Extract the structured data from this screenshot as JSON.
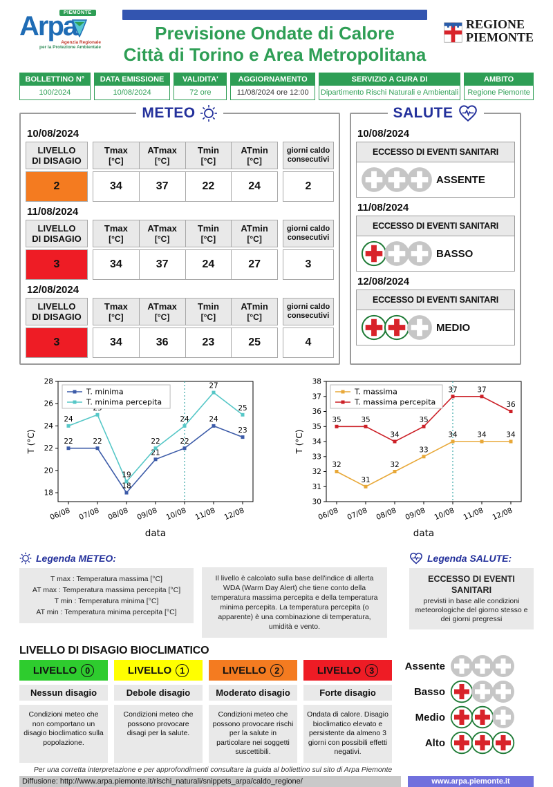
{
  "header": {
    "logo": {
      "badge": "PIEMONTE",
      "word": "Arpa",
      "sub1": "Agenzia Regionale",
      "sub2": "per la Protezione Ambientale"
    },
    "title_line1": "Previsione Ondate di Calore",
    "title_line2": "Città di Torino e Area Metropolitana",
    "region": {
      "line1": "REGIONE",
      "line2": "PIEMONTE"
    },
    "accent_green": "#2e9e55",
    "accent_blue": "#3355b0"
  },
  "info_bar": [
    {
      "label": "BOLLETTINO N°",
      "value": "100/2024"
    },
    {
      "label": "DATA EMISSIONE",
      "value": "10/08/2024"
    },
    {
      "label": "VALIDITA'",
      "value": "72 ore"
    },
    {
      "label": "AGGIORNAMENTO",
      "value": "11/08/2024 ore 12:00"
    },
    {
      "label": "SERVIZIO A CURA DI",
      "value": "Dipartimento Rischi Naturali e Ambientali"
    },
    {
      "label": "AMBITO",
      "value": "Regione Piemonte"
    }
  ],
  "meteo": {
    "section_title": "METEO",
    "headers": {
      "livello": "LIVELLO\nDI DISAGIO",
      "cols": [
        {
          "name": "Tmax",
          "unit": "[°C]"
        },
        {
          "name": "ATmax",
          "unit": "[°C]"
        },
        {
          "name": "Tmin",
          "unit": "[°C]"
        },
        {
          "name": "ATmin",
          "unit": "[°C]"
        }
      ],
      "giorni": "giorni caldo\nconsecutivi"
    },
    "days": [
      {
        "date": "10/08/2024",
        "level": "2",
        "level_color": "#f47b20",
        "values": [
          "34",
          "37",
          "22",
          "24"
        ],
        "giorni": "2"
      },
      {
        "date": "11/08/2024",
        "level": "3",
        "level_color": "#ee1c25",
        "values": [
          "34",
          "37",
          "24",
          "27"
        ],
        "giorni": "3"
      },
      {
        "date": "12/08/2024",
        "level": "3",
        "level_color": "#ee1c25",
        "values": [
          "34",
          "36",
          "23",
          "25"
        ],
        "giorni": "4"
      }
    ]
  },
  "salute": {
    "section_title": "SALUTE",
    "days": [
      {
        "date": "10/08/2024",
        "header": "ECCESSO DI EVENTI SANITARI",
        "label": "ASSENTE",
        "red_crosses": 0
      },
      {
        "date": "11/08/2024",
        "header": "ECCESSO DI EVENTI SANITARI",
        "label": "BASSO",
        "red_crosses": 1
      },
      {
        "date": "12/08/2024",
        "header": "ECCESSO DI EVENTI SANITARI",
        "label": "MEDIO",
        "red_crosses": 2
      }
    ]
  },
  "chart_data": [
    {
      "type": "line",
      "x": [
        "06/08",
        "07/08",
        "08/08",
        "09/08",
        "10/08",
        "11/08",
        "12/08"
      ],
      "series": [
        {
          "name": "T. minima",
          "color": "#3c5ba8",
          "values": [
            22,
            22,
            18,
            21,
            22,
            24,
            23
          ]
        },
        {
          "name": "T. minima percepita",
          "color": "#56c7c7",
          "values": [
            24,
            25,
            19,
            22,
            24,
            27,
            25
          ]
        }
      ],
      "title": "",
      "xlabel": "data",
      "ylabel": "T (°C)",
      "ylim": [
        17.2,
        28
      ],
      "yticks": [
        18,
        20,
        22,
        24,
        26,
        28
      ],
      "vline_x": "10/08",
      "vline_color": "#3aa8a8",
      "grid": false,
      "legend_position": "upper-left"
    },
    {
      "type": "line",
      "x": [
        "06/08",
        "07/08",
        "08/08",
        "09/08",
        "10/08",
        "11/08",
        "12/08"
      ],
      "series": [
        {
          "name": "T. massima",
          "color": "#e8a838",
          "values": [
            32,
            31,
            32,
            33,
            34,
            34,
            34
          ]
        },
        {
          "name": "T. massima percepita",
          "color": "#cc2027",
          "values": [
            35,
            35,
            34,
            35,
            37,
            37,
            36
          ]
        }
      ],
      "title": "",
      "xlabel": "data",
      "ylabel": "T (°C)",
      "ylim": [
        30,
        38
      ],
      "yticks": [
        30,
        31,
        32,
        33,
        34,
        35,
        36,
        37,
        38
      ],
      "vline_x": "10/08",
      "vline_color": "#3aa8a8",
      "grid": false,
      "legend_position": "upper-left"
    }
  ],
  "legend_meteo": {
    "title": "Legenda METEO:",
    "rows": [
      "T max : Temperatura massima [°C]",
      "AT max : Temperatura massima percepita [°C]",
      "T min : Temperatura minima [°C]",
      "AT min : Temperatura minima percepita [°C]"
    ]
  },
  "wda_text": "Il livello è calcolato sulla base dell'indice di allerta WDA (Warm Day Alert) che tiene conto della temperatura massima percepita e della temperatura minima percepita. La temperatura percepita (o apparente) è una combinazione di temperatura, umidità e vento.",
  "legend_salute": {
    "title": "Legenda SALUTE:",
    "box_title": "ECCESSO DI EVENTI SANITARI",
    "box_text": "previsti in base alle condizioni meteorologiche del giorno stesso e dei giorni pregressi",
    "levels": [
      {
        "label": "Assente",
        "red_crosses": 0
      },
      {
        "label": "Basso",
        "red_crosses": 1
      },
      {
        "label": "Medio",
        "red_crosses": 2
      },
      {
        "label": "Alto",
        "red_crosses": 3
      }
    ]
  },
  "disagio": {
    "title": "LIVELLO DI DISAGIO BIOCLIMATICO",
    "levels": [
      {
        "label": "LIVELLO",
        "num": "0",
        "color": "#2ecc2e",
        "name": "Nessun disagio",
        "desc": "Condizioni meteo che non comportano un disagio bioclimatico sulla popolazione."
      },
      {
        "label": "LIVELLO",
        "num": "1",
        "color": "#ffff00",
        "name": "Debole disagio",
        "desc": "Condizioni meteo che possono provocare disagi per la salute."
      },
      {
        "label": "LIVELLO",
        "num": "2",
        "color": "#f47b20",
        "name": "Moderato disagio",
        "desc": "Condizioni meteo che possono provocare rischi per la salute in particolare nei soggetti suscettibili."
      },
      {
        "label": "LIVELLO",
        "num": "3",
        "color": "#ee1c25",
        "name": "Forte disagio",
        "desc": "Ondata di calore. Disagio bioclimatico elevato e persistente da almeno 3 giorni con possibili effetti negativi."
      }
    ]
  },
  "footer": {
    "note": "Per una corretta interpretazione e per approfondimenti consultare la guida al bollettino sul sito di Arpa Piemonte",
    "diffusione": "Diffusione: http://www.arpa.piemonte.it/rischi_naturali/snippets_arpa/caldo_regione/",
    "site": "www.arpa.piemonte.it"
  }
}
